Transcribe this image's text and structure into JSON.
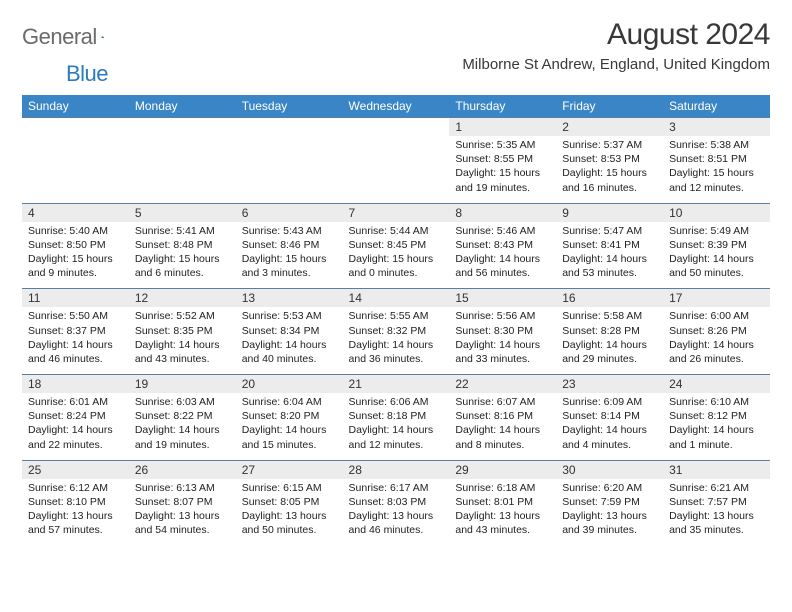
{
  "logo": {
    "word1": "General",
    "word2": "Blue"
  },
  "title": "August 2024",
  "location": "Milborne St Andrew, England, United Kingdom",
  "colors": {
    "header_bg": "#3a85c6",
    "header_text": "#ffffff",
    "daynum_bg": "#ececec",
    "border": "#5b7da0",
    "logo_gray": "#6b6b6b",
    "logo_blue": "#2b7bbf"
  },
  "day_headers": [
    "Sunday",
    "Monday",
    "Tuesday",
    "Wednesday",
    "Thursday",
    "Friday",
    "Saturday"
  ],
  "weeks": [
    [
      null,
      null,
      null,
      null,
      {
        "n": "1",
        "sr": "5:35 AM",
        "ss": "8:55 PM",
        "dl": "15 hours and 19 minutes."
      },
      {
        "n": "2",
        "sr": "5:37 AM",
        "ss": "8:53 PM",
        "dl": "15 hours and 16 minutes."
      },
      {
        "n": "3",
        "sr": "5:38 AM",
        "ss": "8:51 PM",
        "dl": "15 hours and 12 minutes."
      }
    ],
    [
      {
        "n": "4",
        "sr": "5:40 AM",
        "ss": "8:50 PM",
        "dl": "15 hours and 9 minutes."
      },
      {
        "n": "5",
        "sr": "5:41 AM",
        "ss": "8:48 PM",
        "dl": "15 hours and 6 minutes."
      },
      {
        "n": "6",
        "sr": "5:43 AM",
        "ss": "8:46 PM",
        "dl": "15 hours and 3 minutes."
      },
      {
        "n": "7",
        "sr": "5:44 AM",
        "ss": "8:45 PM",
        "dl": "15 hours and 0 minutes."
      },
      {
        "n": "8",
        "sr": "5:46 AM",
        "ss": "8:43 PM",
        "dl": "14 hours and 56 minutes."
      },
      {
        "n": "9",
        "sr": "5:47 AM",
        "ss": "8:41 PM",
        "dl": "14 hours and 53 minutes."
      },
      {
        "n": "10",
        "sr": "5:49 AM",
        "ss": "8:39 PM",
        "dl": "14 hours and 50 minutes."
      }
    ],
    [
      {
        "n": "11",
        "sr": "5:50 AM",
        "ss": "8:37 PM",
        "dl": "14 hours and 46 minutes."
      },
      {
        "n": "12",
        "sr": "5:52 AM",
        "ss": "8:35 PM",
        "dl": "14 hours and 43 minutes."
      },
      {
        "n": "13",
        "sr": "5:53 AM",
        "ss": "8:34 PM",
        "dl": "14 hours and 40 minutes."
      },
      {
        "n": "14",
        "sr": "5:55 AM",
        "ss": "8:32 PM",
        "dl": "14 hours and 36 minutes."
      },
      {
        "n": "15",
        "sr": "5:56 AM",
        "ss": "8:30 PM",
        "dl": "14 hours and 33 minutes."
      },
      {
        "n": "16",
        "sr": "5:58 AM",
        "ss": "8:28 PM",
        "dl": "14 hours and 29 minutes."
      },
      {
        "n": "17",
        "sr": "6:00 AM",
        "ss": "8:26 PM",
        "dl": "14 hours and 26 minutes."
      }
    ],
    [
      {
        "n": "18",
        "sr": "6:01 AM",
        "ss": "8:24 PM",
        "dl": "14 hours and 22 minutes."
      },
      {
        "n": "19",
        "sr": "6:03 AM",
        "ss": "8:22 PM",
        "dl": "14 hours and 19 minutes."
      },
      {
        "n": "20",
        "sr": "6:04 AM",
        "ss": "8:20 PM",
        "dl": "14 hours and 15 minutes."
      },
      {
        "n": "21",
        "sr": "6:06 AM",
        "ss": "8:18 PM",
        "dl": "14 hours and 12 minutes."
      },
      {
        "n": "22",
        "sr": "6:07 AM",
        "ss": "8:16 PM",
        "dl": "14 hours and 8 minutes."
      },
      {
        "n": "23",
        "sr": "6:09 AM",
        "ss": "8:14 PM",
        "dl": "14 hours and 4 minutes."
      },
      {
        "n": "24",
        "sr": "6:10 AM",
        "ss": "8:12 PM",
        "dl": "14 hours and 1 minute."
      }
    ],
    [
      {
        "n": "25",
        "sr": "6:12 AM",
        "ss": "8:10 PM",
        "dl": "13 hours and 57 minutes."
      },
      {
        "n": "26",
        "sr": "6:13 AM",
        "ss": "8:07 PM",
        "dl": "13 hours and 54 minutes."
      },
      {
        "n": "27",
        "sr": "6:15 AM",
        "ss": "8:05 PM",
        "dl": "13 hours and 50 minutes."
      },
      {
        "n": "28",
        "sr": "6:17 AM",
        "ss": "8:03 PM",
        "dl": "13 hours and 46 minutes."
      },
      {
        "n": "29",
        "sr": "6:18 AM",
        "ss": "8:01 PM",
        "dl": "13 hours and 43 minutes."
      },
      {
        "n": "30",
        "sr": "6:20 AM",
        "ss": "7:59 PM",
        "dl": "13 hours and 39 minutes."
      },
      {
        "n": "31",
        "sr": "6:21 AM",
        "ss": "7:57 PM",
        "dl": "13 hours and 35 minutes."
      }
    ]
  ],
  "labels": {
    "sunrise": "Sunrise:",
    "sunset": "Sunset:",
    "daylight": "Daylight:"
  }
}
